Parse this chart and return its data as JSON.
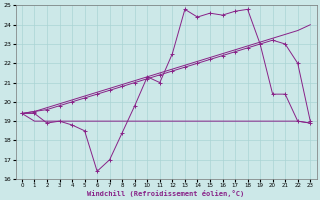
{
  "xlabel": "Windchill (Refroidissement éolien,°C)",
  "bg_color": "#cce8e8",
  "grid_color": "#aad4d4",
  "line_color": "#882288",
  "xlim": [
    -0.5,
    23.5
  ],
  "ylim": [
    16,
    25
  ],
  "xticks": [
    0,
    1,
    2,
    3,
    4,
    5,
    6,
    7,
    8,
    9,
    10,
    11,
    12,
    13,
    14,
    15,
    16,
    17,
    18,
    19,
    20,
    21,
    22,
    23
  ],
  "yticks": [
    16,
    17,
    18,
    19,
    20,
    21,
    22,
    23,
    24,
    25
  ],
  "series1_x": [
    0,
    1,
    2,
    3,
    4,
    5,
    6,
    7,
    8,
    9,
    10,
    11,
    12,
    13,
    14,
    15,
    16,
    17,
    18,
    19,
    20,
    21,
    22,
    23
  ],
  "series1_y": [
    19.4,
    19.4,
    18.9,
    19.0,
    18.8,
    18.5,
    16.4,
    17.0,
    18.4,
    19.8,
    21.3,
    21.0,
    22.5,
    24.8,
    24.4,
    24.6,
    24.5,
    24.7,
    24.8,
    23.0,
    20.4,
    20.4,
    19.0,
    18.9
  ],
  "series2_x": [
    0,
    1,
    2,
    3,
    4,
    5,
    6,
    7,
    8,
    9,
    10,
    11,
    12,
    13,
    14,
    15,
    16,
    17,
    18,
    19,
    20,
    21,
    22,
    23
  ],
  "series2_y": [
    19.4,
    19.5,
    19.6,
    19.8,
    20.0,
    20.2,
    20.4,
    20.6,
    20.8,
    21.0,
    21.2,
    21.4,
    21.6,
    21.8,
    22.0,
    22.2,
    22.4,
    22.6,
    22.8,
    23.0,
    23.2,
    23.0,
    22.0,
    19.0
  ],
  "series3_x": [
    0,
    1,
    2,
    10,
    22,
    23
  ],
  "series3_y": [
    19.4,
    19.0,
    19.0,
    19.0,
    19.0,
    18.9
  ],
  "series4_x": [
    0,
    1,
    2,
    3,
    4,
    5,
    6,
    7,
    8,
    9,
    10,
    11,
    12,
    13,
    14,
    15,
    16,
    17,
    18,
    19,
    20,
    21,
    22,
    23
  ],
  "series4_y": [
    19.4,
    19.5,
    19.7,
    19.9,
    20.1,
    20.3,
    20.5,
    20.7,
    20.9,
    21.1,
    21.3,
    21.5,
    21.7,
    21.9,
    22.1,
    22.3,
    22.5,
    22.7,
    22.9,
    23.1,
    23.3,
    23.5,
    23.7,
    24.0
  ]
}
